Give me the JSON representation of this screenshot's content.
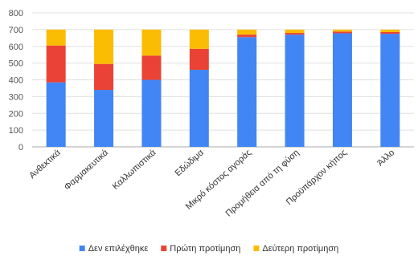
{
  "chart_data": {
    "type": "bar",
    "stacked": true,
    "title": "",
    "xlabel": "",
    "ylabel": "",
    "ylim": [
      0,
      800
    ],
    "yticks": [
      0,
      100,
      200,
      300,
      400,
      500,
      600,
      700,
      800
    ],
    "grid": true,
    "legend_position": "bottom",
    "categories": [
      "Ανθεκτικά",
      "Φαρμακευτικά",
      "Καλλωπιστικά",
      "Εδώδιμα",
      "Μικρό κόστος αγοράς",
      "Προμήθεια από τη φύση",
      "Προϋπάρχον κήπος",
      "Άλλο"
    ],
    "series": [
      {
        "name": "Δεν επιλέχθηκε",
        "color": "#4285F4",
        "values": [
          385,
          340,
          400,
          460,
          655,
          670,
          678,
          675
        ]
      },
      {
        "name": "Πρώτη προτίμηση",
        "color": "#EA4335",
        "values": [
          220,
          155,
          145,
          125,
          15,
          10,
          10,
          10
        ]
      },
      {
        "name": "Δεύτερη προτίμηση",
        "color": "#FBBC04",
        "values": [
          95,
          205,
          155,
          115,
          30,
          20,
          12,
          15
        ]
      }
    ]
  }
}
